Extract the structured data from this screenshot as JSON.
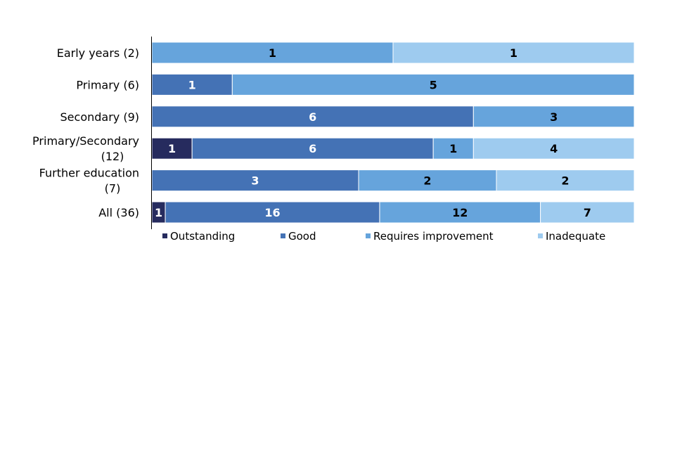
{
  "chart_data": {
    "type": "bar",
    "orientation": "horizontal",
    "stacked": true,
    "categories": [
      "Early years (2)",
      "Primary (6)",
      "Secondary (9)",
      "Primary/Secondary (12)",
      "Further education (7)",
      "All (36)"
    ],
    "series": [
      {
        "name": "Outstanding",
        "values": [
          0,
          0,
          0,
          1,
          0,
          1
        ],
        "color": "#262B5E",
        "label_color": "#ffffff"
      },
      {
        "name": "Good",
        "values": [
          0,
          1,
          6,
          6,
          3,
          16
        ],
        "color": "#4472B5",
        "label_color": "#ffffff"
      },
      {
        "name": "Requires improvement",
        "values": [
          1,
          5,
          3,
          1,
          2,
          12
        ],
        "color": "#66A4DC",
        "label_color": "#000000"
      },
      {
        "name": "Inadequate",
        "values": [
          1,
          0,
          0,
          4,
          2,
          7
        ],
        "color": "#9ECBEF",
        "label_color": "#000000"
      }
    ],
    "scale": "percent-of-total",
    "legend_position": "bottom",
    "grid": false
  }
}
